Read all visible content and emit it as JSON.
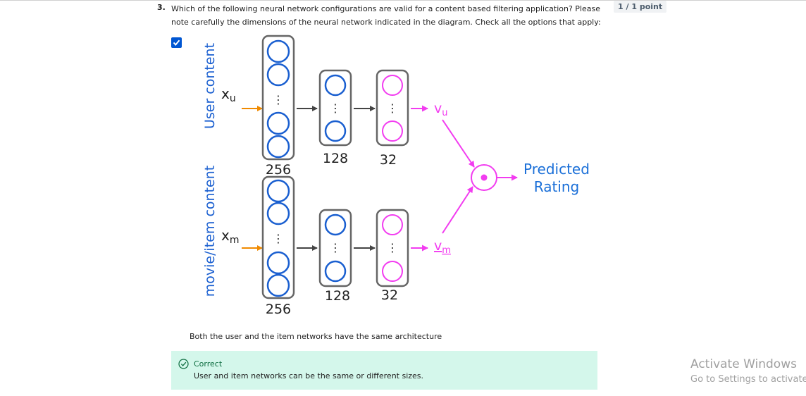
{
  "question": {
    "number": "3.",
    "text": "Which of the following neural network configurations are valid for a content based filtering application? Please note carefully the dimensions of the neural network indicated in the diagram. Check all the options that apply:",
    "points": "1 / 1 point"
  },
  "option": {
    "checked": true,
    "caption": "Both the user and the item networks have the same architecture"
  },
  "diagram": {
    "user_side_label": "User content",
    "item_side_label": "movie/item content",
    "user_input": {
      "base": "x",
      "sub": "u"
    },
    "item_input": {
      "base": "x",
      "sub": "m"
    },
    "user_output": {
      "base": "v",
      "sub": "u"
    },
    "item_output": {
      "base": "v",
      "sub": "m"
    },
    "user_layer_sizes": [
      "256",
      "128",
      "32"
    ],
    "item_layer_sizes": [
      "256",
      "128",
      "32"
    ],
    "ellipsis": "⋮",
    "output_label_line1": "Predicted",
    "output_label_line2": "Rating",
    "colors": {
      "blue_neuron": "#1a5fd0",
      "pink": "#f23cf0",
      "orange": "#f08a00",
      "box": "#666666",
      "label_blue": "#1a6fd8"
    }
  },
  "feedback": {
    "status": "Correct",
    "message": "User and item networks can be the same or different sizes."
  },
  "watermark": {
    "title": "Activate Windows",
    "subtitle": "Go to Settings to activate"
  }
}
